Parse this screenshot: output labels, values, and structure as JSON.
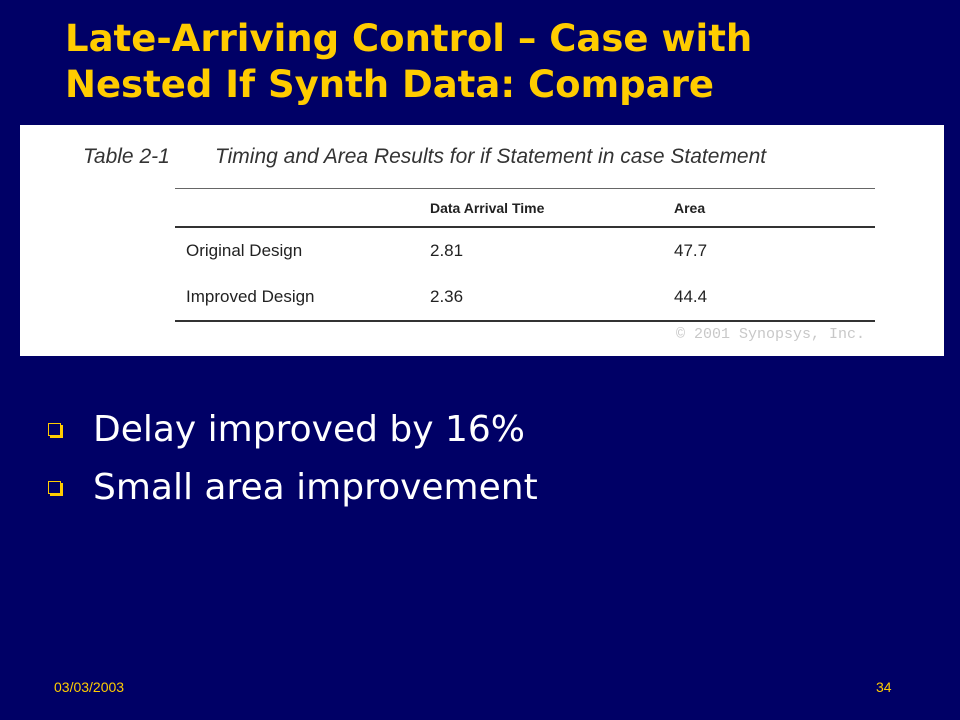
{
  "slide": {
    "title_line1": "Late-Arriving Control – Case with",
    "title_line2": "Nested If Synth Data: Compare"
  },
  "table": {
    "caption_label": "Table 2-1",
    "caption_text": "Timing and Area Results for if Statement in case Statement",
    "headers": [
      "",
      "Data Arrival Time",
      "Area"
    ],
    "rows": [
      [
        "Original Design",
        "2.81",
        "47.7"
      ],
      [
        "Improved Design",
        "2.36",
        "44.4"
      ]
    ],
    "copyright": "© 2001 Synopsys, Inc."
  },
  "bullets": [
    "Delay improved by 16%",
    "Small area improvement"
  ],
  "footer": {
    "date": "03/03/2003",
    "page_number": "34"
  },
  "colors": {
    "background": "#000066",
    "title": "#ffcc00",
    "bullet_text": "#ffffff",
    "bullet_marker": "#ffcc00",
    "footer": "#ffcc00"
  }
}
